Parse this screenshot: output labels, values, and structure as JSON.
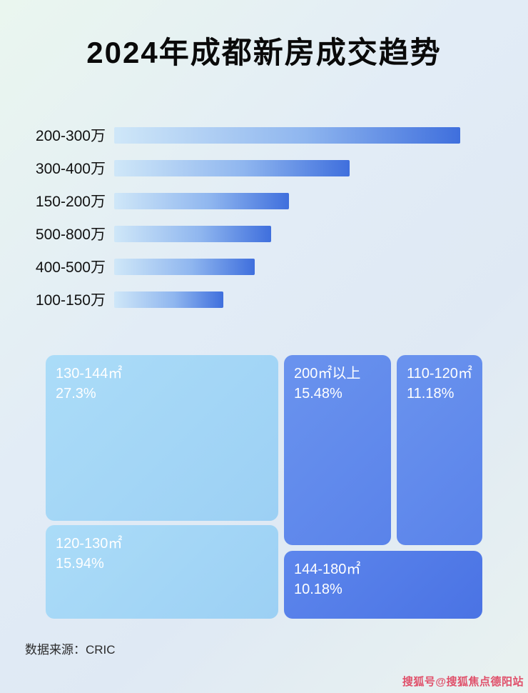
{
  "page": {
    "title": "2024年成都新房成交趋势",
    "source": "数据来源：CRIC",
    "watermark": "搜狐号@搜狐焦点德阳站"
  },
  "colors": {
    "bar_gradient_start": "#cfe7f8",
    "bar_gradient_end": "#3f6fdd",
    "treemap_light": "#a5d7f6",
    "treemap_medium": "#5a83ea",
    "treemap_dark": "#4a73e4",
    "watermark_red": "#e0506a"
  },
  "chart_data": [
    {
      "type": "bar",
      "orientation": "horizontal",
      "title": "2024年成都新房成交趋势",
      "categories": [
        "200-300万",
        "300-400万",
        "150-200万",
        "500-800万",
        "400-500万",
        "100-150万"
      ],
      "values": [
        100,
        68,
        50.5,
        45.4,
        40.6,
        31.5
      ],
      "value_note": "relative bar length, percent of longest bar (no numeric axis shown)",
      "xlabel": "",
      "ylabel": "",
      "grid": false,
      "legend": false
    },
    {
      "type": "treemap",
      "items": [
        {
          "label": "130-144㎡",
          "percent": "27.3%"
        },
        {
          "label": "200㎡以上",
          "percent": "15.48%"
        },
        {
          "label": "110-120㎡",
          "percent": "11.18%"
        },
        {
          "label": "120-130㎡",
          "percent": "15.94%"
        },
        {
          "label": "144-180㎡",
          "percent": "10.18%"
        }
      ]
    }
  ]
}
